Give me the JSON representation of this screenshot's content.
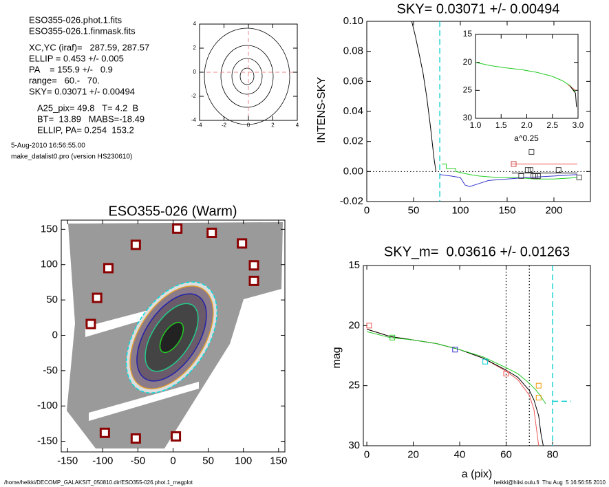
{
  "info": {
    "files": [
      "ESO355-026.phot.1.fits",
      "ESO355-026.1.finmask.fits"
    ],
    "params": [
      "XC,YC (iraf)=   287.59, 287.57",
      "ELLIP = 0.453 +/- 0.005",
      "PA    = 155.9 +/-   0.9",
      "range=   60.-   70.",
      "SKY= 0.03071 +/- 0.00494"
    ],
    "results": [
      "A25_pix= 49.8   T= 4.2  B",
      "BT=  13.89   MABS=-18.49",
      "ELLIP, PA= 0.254  153.2"
    ],
    "stamp": [
      "5-Aug-2010 16:56:55.00",
      "make_datalist0.pro (version HS230610)"
    ]
  },
  "footer": {
    "left": "/home/heikki/DECOMP_GALAKSIT_050810.dir/ESO355-026.phot.1_magplot",
    "right": "heikki@hiisi.oulu.fi  Thu Aug  5 16:56:55 2010"
  },
  "chart_data": [
    {
      "type": "contour",
      "xlim": [
        -4,
        4
      ],
      "ylim": [
        -4,
        4
      ],
      "xticks": [
        -4,
        -2,
        0,
        2,
        4
      ],
      "yticks": [
        -4,
        -2,
        0,
        2,
        4
      ],
      "crosshair": [
        0,
        0
      ],
      "crosshair_color": "#e88"
    },
    {
      "type": "line",
      "title": "SKY= 0.03071 +/- 0.00494",
      "y_label": "INTENS-SKY",
      "xlim": [
        0,
        239
      ],
      "ylim": [
        -0.02,
        0.1
      ],
      "xticks": [
        0,
        50,
        100,
        150,
        200
      ],
      "yticks": [
        -0.02,
        {
          "value": 0,
          "label": "0.00"
        },
        0.02,
        0.04,
        0.06,
        0.08,
        {
          "value": 0.1,
          "label": "0.10"
        }
      ],
      "series": [
        {
          "color": "#000000",
          "x": [
            48,
            52,
            56,
            60,
            64,
            68,
            72,
            74
          ],
          "values": [
            0.1,
            0.09,
            0.078,
            0.066,
            0.05,
            0.03,
            0.008,
            0
          ]
        },
        {
          "color": "#22cc22",
          "x": [
            80,
            85,
            85,
            95,
            95,
            110,
            120,
            140,
            160,
            180,
            200,
            225
          ],
          "values": [
            0.005,
            0.005,
            0.002,
            0.002,
            0,
            -0.002,
            -0.003,
            -0.004,
            -0.004,
            -0.005,
            -0.005,
            -0.004
          ]
        },
        {
          "color": "#3333cc",
          "x": [
            78,
            90,
            100,
            105,
            110,
            120,
            130,
            150,
            170,
            200,
            225
          ],
          "values": [
            -0.002,
            -0.003,
            -0.004,
            -0.009,
            -0.01,
            -0.008,
            -0.006,
            -0.005,
            -0.004,
            -0.003,
            -0.002
          ]
        },
        {
          "color": "#ee5555",
          "x": [
            155,
            225
          ],
          "values": [
            0.005,
            0.005
          ]
        },
        {
          "color": "#000000",
          "x": [
            155,
            225
          ],
          "values": [
            -0.001,
            -0.001
          ]
        },
        {
          "color": "#cc4444",
          "mode": "markers",
          "x": [
            157
          ],
          "values": [
            0.005
          ]
        },
        {
          "color": "#444444",
          "mode": "markers",
          "x": [
            172,
            175,
            176,
            178,
            180,
            205,
            165,
            183,
            227
          ],
          "values": [
            0.001,
            0.001,
            0.013,
            -0.003,
            -0.003,
            0.001,
            -0.003,
            -0.003,
            -0.004
          ]
        }
      ],
      "vlines": [
        {
          "x": 78,
          "color": "#00cccc",
          "style": "dashed"
        }
      ],
      "hlines": [
        {
          "y": 0,
          "color": "#000000",
          "style": "dotted"
        }
      ]
    },
    {
      "type": "line",
      "x_label": "a^0.25",
      "xlim": [
        1,
        3
      ],
      "ylim": [
        30,
        15
      ],
      "xticks": [
        {
          "value": 1,
          "label": "1.0"
        },
        1.5,
        {
          "value": 2,
          "label": "2.0"
        },
        2.5,
        {
          "value": 3,
          "label": "3.0"
        }
      ],
      "yticks": [
        15,
        20,
        25,
        30
      ],
      "series": [
        {
          "color": "#22cc22",
          "x": [
            1,
            1.3,
            1.6,
            1.9,
            2.2,
            2.5,
            2.7,
            2.85,
            2.95
          ],
          "values": [
            20,
            20.6,
            21,
            21.3,
            21.8,
            22.5,
            23.3,
            24.2,
            25.3
          ]
        },
        {
          "color": "#ee5555",
          "x": [
            2.8,
            2.95
          ],
          "values": [
            24,
            25
          ]
        },
        {
          "color": "#000000",
          "x": [
            2.85,
            2.95,
            2.97
          ],
          "values": [
            24.3,
            25.5,
            28
          ]
        }
      ]
    },
    {
      "type": "image",
      "title": "ESO355-026 (Warm)",
      "xlim": [
        -159,
        159
      ],
      "ylim": [
        -165,
        163
      ],
      "xticks": [
        -150,
        -100,
        -50,
        0,
        50,
        100,
        150
      ],
      "yticks": [
        -150,
        -100,
        -50,
        0,
        50,
        100,
        150
      ],
      "series": [
        {
          "color": "#8b0000",
          "mode": "markers",
          "x": [
            6,
            55,
            -53,
            98,
            -92,
            115,
            115,
            -108,
            -117,
            -97,
            -53,
            4
          ],
          "values": [
            151,
            145,
            128,
            130,
            95,
            99,
            77,
            53,
            16,
            -138,
            -146,
            -143
          ]
        }
      ]
    },
    {
      "type": "line",
      "title": "SKY_m=  0.03616 +/- 0.01263",
      "y_label": "mag",
      "x_label": "a (pix)",
      "xlim": [
        -1.5,
        96.3
      ],
      "ylim": [
        30,
        15
      ],
      "xticks": [
        0,
        20,
        40,
        60,
        80
      ],
      "yticks": [
        15,
        20,
        25,
        30
      ],
      "series": [
        {
          "color": "#ee5555",
          "x": [
            0,
            10,
            20,
            30,
            40,
            50,
            60,
            65,
            70,
            72,
            73,
            74
          ],
          "values": [
            20.3,
            20.9,
            21.2,
            21.5,
            22,
            22.7,
            23.8,
            24.5,
            25.8,
            27,
            28.5,
            30
          ]
        },
        {
          "color": "#000000",
          "x": [
            0,
            10,
            20,
            30,
            40,
            50,
            60,
            65,
            70,
            72,
            74,
            75,
            76
          ],
          "values": [
            20.3,
            20.9,
            21.2,
            21.5,
            22,
            22.7,
            23.7,
            24.3,
            25.4,
            26.2,
            27.5,
            29,
            30
          ]
        },
        {
          "color": "#22cc22",
          "x": [
            0,
            10,
            20,
            30,
            40,
            50,
            60,
            65,
            70,
            73,
            75,
            77
          ],
          "values": [
            20.5,
            21,
            21.2,
            21.5,
            22,
            22.6,
            23.5,
            24,
            24.8,
            25.4,
            25.9,
            26.5
          ]
        },
        {
          "color": "#ee5555",
          "mode": "markers",
          "x": [
            1,
            60
          ],
          "values": [
            20,
            24
          ]
        },
        {
          "color": "#22cc22",
          "mode": "markers",
          "x": [
            11
          ],
          "values": [
            21
          ]
        },
        {
          "color": "#3333cc",
          "mode": "markers",
          "x": [
            38
          ],
          "values": [
            22
          ]
        },
        {
          "color": "#00cccc",
          "mode": "markers",
          "x": [
            51
          ],
          "values": [
            23
          ]
        },
        {
          "color": "#ee9900",
          "mode": "markers",
          "x": [
            74,
            74
          ],
          "values": [
            25,
            26
          ]
        }
      ],
      "vlines": [
        {
          "x": 60,
          "color": "#000000",
          "style": "dotted"
        },
        {
          "x": 70,
          "color": "#000000",
          "style": "dotted"
        },
        {
          "x": 80,
          "color": "#00cccc",
          "style": "dashed"
        }
      ],
      "hsegments": [
        {
          "y": 26.3,
          "x": [
            80,
            88
          ],
          "color": "#00cccc",
          "style": "dashed"
        }
      ]
    }
  ]
}
